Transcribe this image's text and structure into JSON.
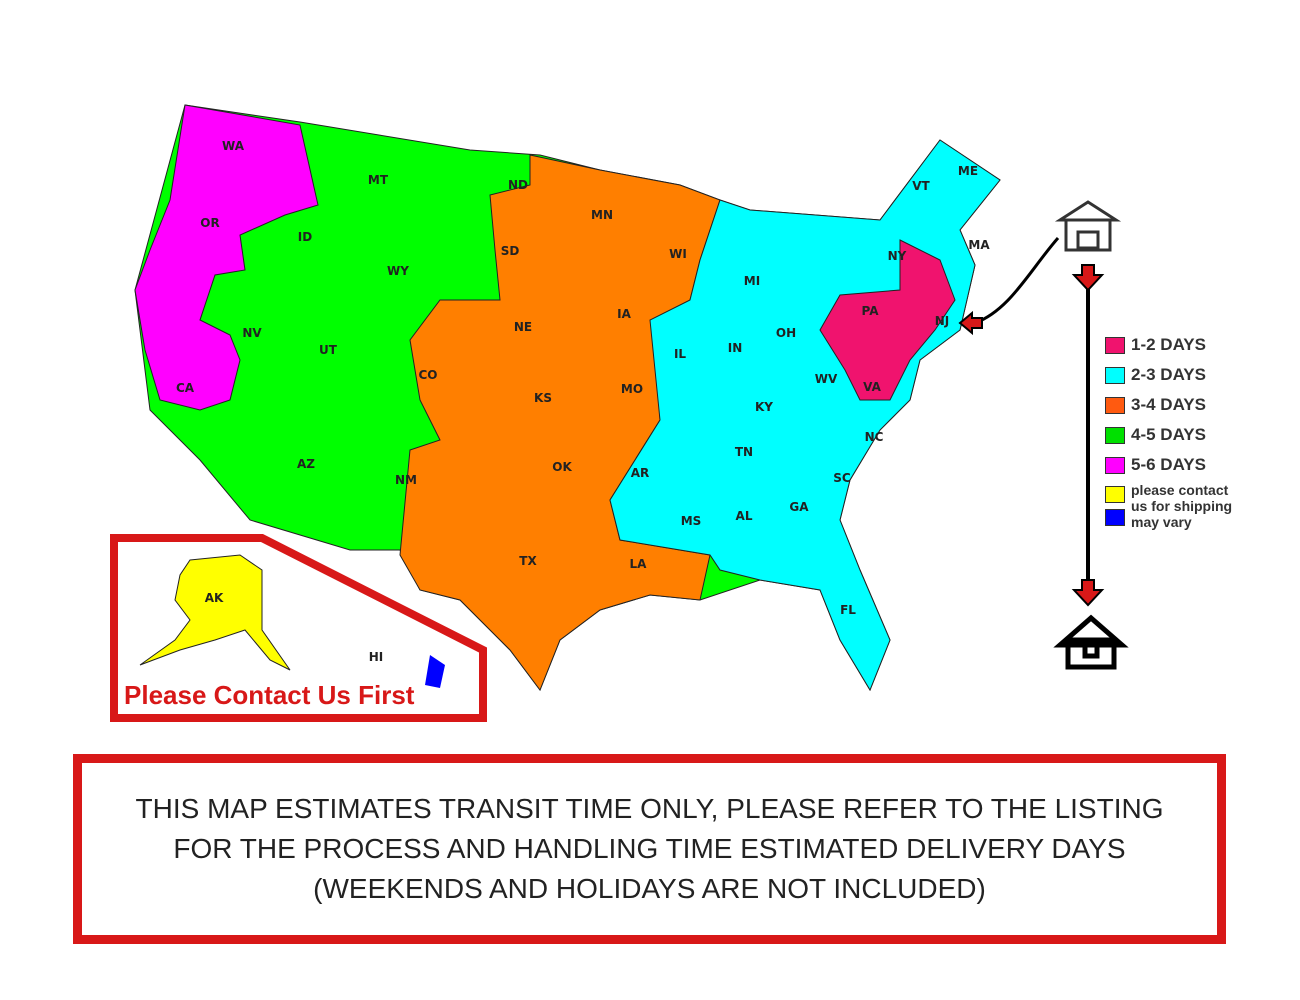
{
  "colors": {
    "1-2": "#f0136e",
    "2-3": "#00ffff",
    "3-4": "#ff7f00",
    "4-5": "#00ff00",
    "5-6": "#ff00ff",
    "contact": "#ffff00",
    "vary": "#0000ff",
    "frame": "#d81818"
  },
  "states": [
    "WA",
    "OR",
    "CA",
    "MT",
    "ID",
    "WY",
    "NV",
    "UT",
    "AZ",
    "CO",
    "NM",
    "ND",
    "SD",
    "NE",
    "KS",
    "OK",
    "TX",
    "MN",
    "IA",
    "MO",
    "AR",
    "LA",
    "WI",
    "IL",
    "MI",
    "IN",
    "OH",
    "KY",
    "TN",
    "MS",
    "AL",
    "GA",
    "FL",
    "SC",
    "NC",
    "WV",
    "VA",
    "PA",
    "NY",
    "VT",
    "ME",
    "MA",
    "NJ",
    "AK",
    "HI"
  ],
  "legend": [
    {
      "label": "1-2 DAYS",
      "color": "#f0136e"
    },
    {
      "label": "2-3 DAYS",
      "color": "#00ffff"
    },
    {
      "label": "3-4 DAYS",
      "color": "#ff5a10"
    },
    {
      "label": "4-5 DAYS",
      "color": "#00e000"
    },
    {
      "label": "5-6 DAYS",
      "color": "#ff00ff"
    }
  ],
  "legend_note": {
    "line1": "please contact",
    "line2": "us for shipping",
    "line3": "may vary",
    "color1": "#ffff00",
    "color2": "#0000ff"
  },
  "icons": {
    "origin": "warehouse-icon",
    "destination": "house-icon"
  },
  "inset_caption": "Please Contact Us First",
  "note": "THIS MAP ESTIMATES TRANSIT TIME ONLY, PLEASE REFER TO THE LISTING FOR THE PROCESS AND HANDLING TIME ESTIMATED DELIVERY DAYS (WEEKENDS AND HOLIDAYS ARE NOT INCLUDED)"
}
